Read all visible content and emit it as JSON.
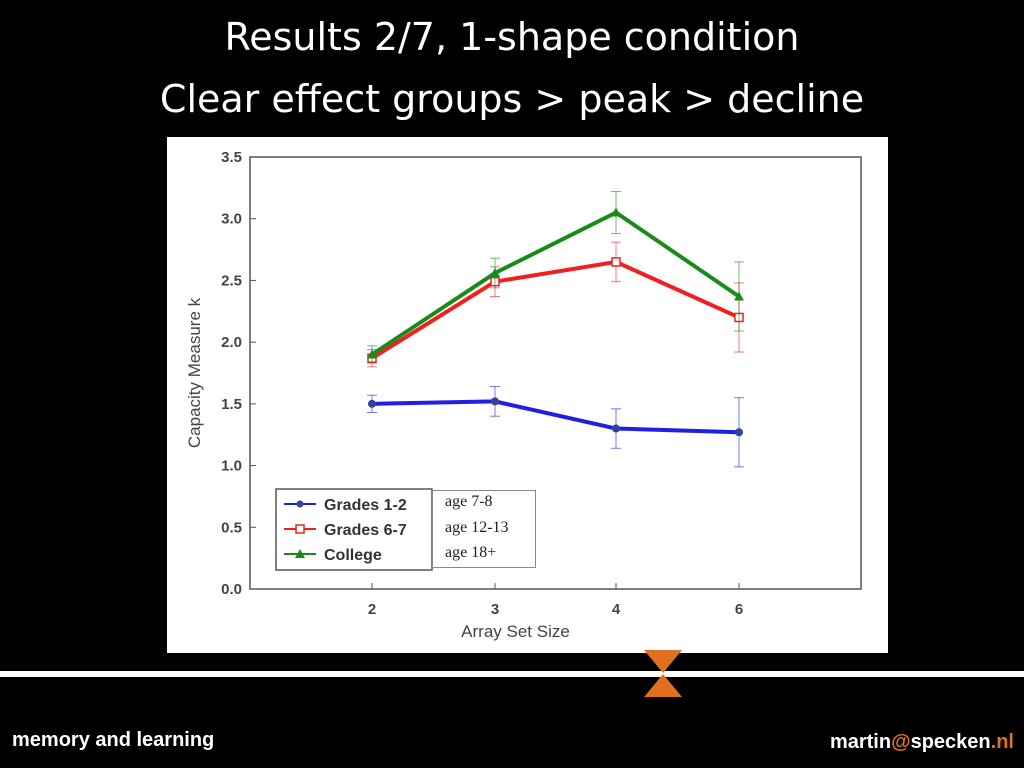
{
  "slide": {
    "title_line1": "Results 2/7, 1-shape condition",
    "title_line2": "Clear effect groups > peak > decline"
  },
  "footer": {
    "left": "memory and learning",
    "email_user": "martin",
    "email_at": "@",
    "email_domain": "specken",
    "email_dot": ".",
    "email_tld": "nl"
  },
  "annotations": {
    "age_labels": [
      "age 7-8",
      "age 12-13",
      "age 18+"
    ]
  },
  "colors": {
    "accent": "#e07020",
    "grades_1_2": "#1f1fe6",
    "grades_6_7": "#f02020",
    "college": "#1a8a1a"
  },
  "chart_data": {
    "type": "line",
    "xlabel": "Array Set Size",
    "ylabel": "Capacity Measure k",
    "categories": [
      "2",
      "3",
      "4",
      "6"
    ],
    "ylim": [
      0,
      3.5
    ],
    "yticks": [
      "0.0",
      "0.5",
      "1.0",
      "1.5",
      "2.0",
      "2.5",
      "3.0",
      "3.5"
    ],
    "legend_position": "bottom-left",
    "series": [
      {
        "name": "Grades 1-2",
        "color": "#1f1fe6",
        "marker": "circle",
        "values": [
          1.5,
          1.52,
          1.3,
          1.27
        ],
        "errors": [
          0.07,
          0.12,
          0.16,
          0.28
        ]
      },
      {
        "name": "Grades 6-7",
        "color": "#f02020",
        "marker": "square-open",
        "values": [
          1.87,
          2.49,
          2.65,
          2.2
        ],
        "errors": [
          0.07,
          0.12,
          0.16,
          0.28
        ]
      },
      {
        "name": "College",
        "color": "#1a8a1a",
        "marker": "triangle",
        "values": [
          1.9,
          2.56,
          3.05,
          2.37
        ],
        "errors": [
          0.07,
          0.12,
          0.17,
          0.28
        ]
      }
    ]
  }
}
